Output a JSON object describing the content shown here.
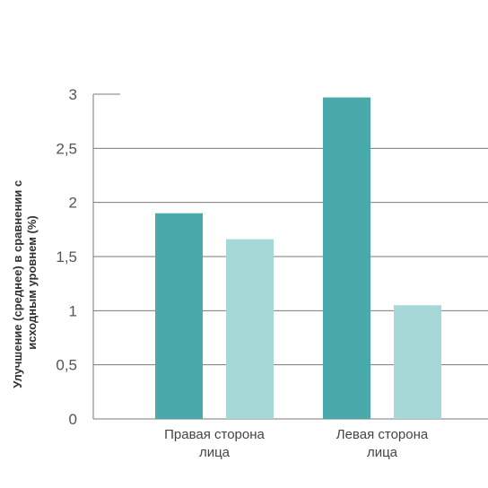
{
  "chart_data": {
    "type": "bar",
    "categories": [
      [
        "Правая сторона",
        "лица"
      ],
      [
        "Левая сторона",
        "лица"
      ]
    ],
    "series": [
      {
        "values": [
          1.9,
          2.97
        ],
        "color": "#4aa9aa"
      },
      {
        "values": [
          1.66,
          1.05
        ],
        "color": "#a6d8d7"
      }
    ],
    "ylabel": [
      "Улучшение (среднее) в сравнении с",
      "исходным уровнем (%)"
    ],
    "ylim": [
      0,
      3
    ],
    "yticks": [
      "0",
      "0,5",
      "1",
      "1,5",
      "2",
      "2,5",
      "3"
    ],
    "grid": true
  }
}
